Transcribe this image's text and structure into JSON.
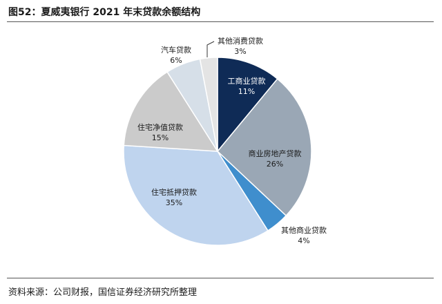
{
  "title": "图52：夏威夷银行 2021 年末贷款余额结构",
  "source": "资料来源：公司财报，国信证券经济研究所整理",
  "chart_data": {
    "type": "pie",
    "title": "",
    "slices": [
      {
        "label": "工商业贷款",
        "value": 11,
        "display": "11%",
        "color": "#0f2b56",
        "text_color": "#ffffff"
      },
      {
        "label": "商业房地产贷款",
        "value": 26,
        "display": "26%",
        "color": "#9aa7b5",
        "text_color": "#1a1a1a"
      },
      {
        "label": "其他商业贷款",
        "value": 4,
        "display": "4%",
        "color": "#3f8ecd",
        "text_color": "#1a1a1a"
      },
      {
        "label": "住宅抵押贷款",
        "value": 35,
        "display": "35%",
        "color": "#bfd4ee",
        "text_color": "#1a1a1a"
      },
      {
        "label": "住宅净值贷款",
        "value": 15,
        "display": "15%",
        "color": "#cbcbcb",
        "text_color": "#1a1a1a"
      },
      {
        "label": "汽车贷款",
        "value": 6,
        "display": "6%",
        "color": "#d6dfe8",
        "text_color": "#1a1a1a"
      },
      {
        "label": "其他消费贷款",
        "value": 3,
        "display": "3%",
        "color": "#e4e4e4",
        "text_color": "#1a1a1a"
      }
    ]
  }
}
